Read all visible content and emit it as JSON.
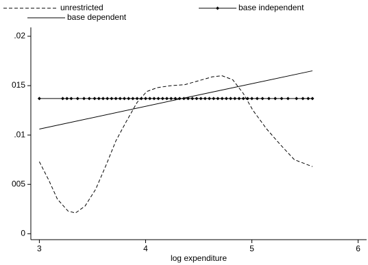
{
  "chart_data": {
    "type": "line",
    "x_label": "log expenditure",
    "xlim": [
      2.92,
      6.08
    ],
    "xticks": [
      3,
      4,
      5,
      6
    ],
    "ylim": [
      -0.0006,
      0.0209
    ],
    "yticks": [
      0,
      {
        "value": 0.005,
        "label": "005"
      },
      {
        "value": 0.01,
        "label": ".01"
      },
      {
        "value": 0.015,
        "label": "015"
      },
      {
        "value": 0.02,
        "label": ".02"
      }
    ],
    "series": [
      {
        "name": "unrestricted",
        "color": "#000000",
        "style": "dashed",
        "x": [
          3.0,
          3.09,
          3.17,
          3.27,
          3.34,
          3.43,
          3.53,
          3.63,
          3.72,
          3.82,
          3.92,
          4.01,
          4.11,
          4.24,
          4.37,
          4.5,
          4.63,
          4.72,
          4.82,
          4.92,
          5.01,
          5.14,
          5.27,
          5.4,
          5.57
        ],
        "values": [
          0.0073,
          0.0054,
          0.0035,
          0.0023,
          0.0021,
          0.0028,
          0.0045,
          0.007,
          0.0094,
          0.0114,
          0.0133,
          0.0144,
          0.0148,
          0.015,
          0.0151,
          0.0155,
          0.0159,
          0.016,
          0.0156,
          0.0142,
          0.0125,
          0.0106,
          0.009,
          0.0075,
          0.0068
        ]
      },
      {
        "name": "base independent",
        "color": "#000000",
        "style": "solid",
        "marker": "diamond",
        "x": [
          3.0,
          3.22,
          3.26,
          3.3,
          3.36,
          3.42,
          3.47,
          3.52,
          3.56,
          3.6,
          3.64,
          3.68,
          3.72,
          3.76,
          3.8,
          3.84,
          3.88,
          3.92,
          3.96,
          4.0,
          4.04,
          4.08,
          4.12,
          4.16,
          4.2,
          4.24,
          4.28,
          4.32,
          4.36,
          4.4,
          4.44,
          4.48,
          4.52,
          4.56,
          4.6,
          4.64,
          4.68,
          4.72,
          4.76,
          4.8,
          4.84,
          4.88,
          4.92,
          4.96,
          5.0,
          5.05,
          5.1,
          5.16,
          5.22,
          5.28,
          5.34,
          5.42,
          5.48,
          5.53,
          5.57
        ],
        "values": [
          0.0137,
          0.0137,
          0.0137,
          0.0137,
          0.0137,
          0.0137,
          0.0137,
          0.0137,
          0.0137,
          0.0137,
          0.0137,
          0.0137,
          0.0137,
          0.0137,
          0.0137,
          0.0137,
          0.0137,
          0.0137,
          0.0137,
          0.0137,
          0.0137,
          0.0137,
          0.0137,
          0.0137,
          0.0137,
          0.0137,
          0.0137,
          0.0137,
          0.0137,
          0.0137,
          0.0137,
          0.0137,
          0.0137,
          0.0137,
          0.0137,
          0.0137,
          0.0137,
          0.0137,
          0.0137,
          0.0137,
          0.0137,
          0.0137,
          0.0137,
          0.0137,
          0.0137,
          0.0137,
          0.0137,
          0.0137,
          0.0137,
          0.0137,
          0.0137,
          0.0137,
          0.0137,
          0.0137,
          0.0137
        ]
      },
      {
        "name": "base dependent",
        "color": "#000000",
        "style": "solid",
        "x": [
          3.0,
          4.3,
          5.57
        ],
        "values": [
          0.0106,
          0.0136,
          0.0165
        ]
      }
    ]
  }
}
